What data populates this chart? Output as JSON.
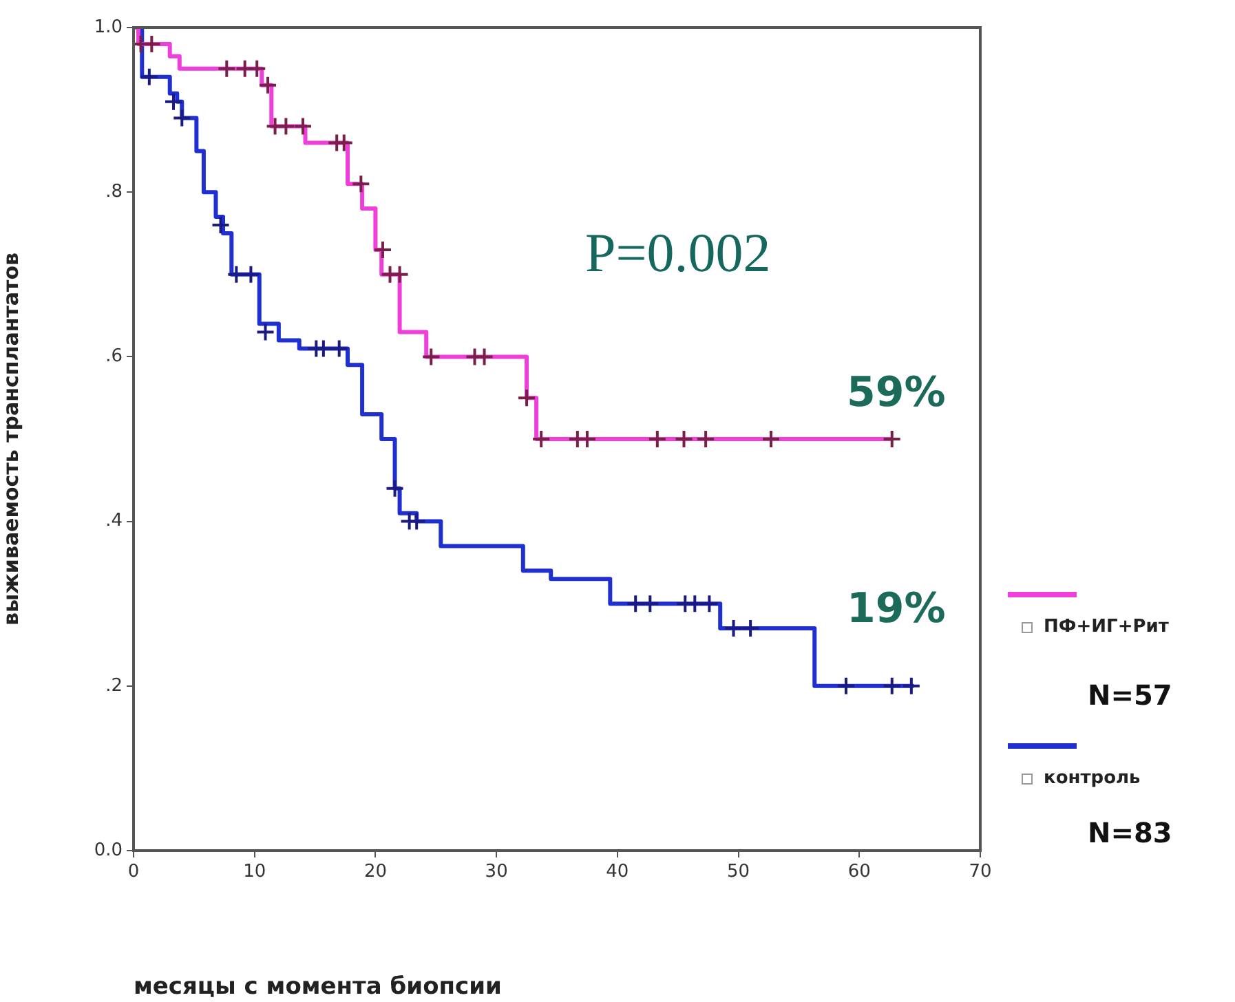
{
  "chart_data": {
    "type": "step",
    "xlabel": "месяцы с момента биопсии",
    "ylabel": "выживаемость трансплантатов",
    "xlim": [
      0,
      70
    ],
    "xticks": [
      0,
      10,
      20,
      30,
      40,
      50,
      60,
      70
    ],
    "ylim": [
      0,
      1
    ],
    "yticks": [
      {
        "value": 0,
        "label": "0.0"
      },
      {
        "value": 0.2,
        "label": ".2"
      },
      {
        "value": 0.4,
        "label": ".4"
      },
      {
        "value": 0.6,
        "label": ".6"
      },
      {
        "value": 0.8,
        "label": ".8"
      },
      {
        "value": 1,
        "label": "1.0"
      }
    ],
    "grid": false,
    "legend": "right",
    "series": [
      {
        "name": "ПФ+ИГ+Рит",
        "marker": "none",
        "color": "#ee3fd8",
        "x": [
          0,
          0.4,
          3,
          3.8,
          10.6,
          11.4,
          14.2,
          17.7,
          18.9,
          20,
          20.5,
          22,
          24.2,
          32.5,
          33.3,
          62.7
        ],
        "values": [
          1,
          0.98,
          0.965,
          0.95,
          0.93,
          0.88,
          0.86,
          0.81,
          0.78,
          0.73,
          0.7,
          0.63,
          0.6,
          0.55,
          0.5,
          0.5
        ]
      },
      {
        "type": "scatter",
        "marker": "cross",
        "color": "#7a1f4a",
        "x": [
          0.6,
          1.5,
          7.7,
          9.2,
          10.2,
          11.1,
          11.7,
          12.6,
          14,
          16.8,
          17.4,
          18.8,
          20.6,
          21.2,
          22,
          24.6,
          28.2,
          29,
          32.5,
          33.7,
          36.7,
          37.5,
          43.3,
          45.5,
          47.3,
          52.7,
          62.7
        ],
        "values": [
          0.98,
          0.98,
          0.95,
          0.95,
          0.95,
          0.93,
          0.88,
          0.88,
          0.88,
          0.86,
          0.86,
          0.81,
          0.73,
          0.7,
          0.7,
          0.6,
          0.6,
          0.6,
          0.55,
          0.5,
          0.5,
          0.5,
          0.5,
          0.5,
          0.5,
          0.5,
          0.5
        ]
      },
      {
        "name": "контроль",
        "marker": "none",
        "color": "#1f2fd0",
        "x": [
          0,
          0.7,
          3,
          3.6,
          4,
          5.2,
          5.8,
          6.8,
          7.4,
          8.1,
          10.4,
          12,
          13.7,
          17.7,
          18.9,
          20.5,
          21.6,
          22,
          23.4,
          25.4,
          32.2,
          34.5,
          39.4,
          48.5,
          56.3,
          64.5
        ],
        "values": [
          1,
          0.94,
          0.92,
          0.91,
          0.89,
          0.85,
          0.8,
          0.77,
          0.75,
          0.7,
          0.64,
          0.62,
          0.61,
          0.59,
          0.53,
          0.5,
          0.44,
          0.41,
          0.4,
          0.37,
          0.34,
          0.33,
          0.3,
          0.27,
          0.2,
          0.2
        ]
      },
      {
        "type": "scatter",
        "marker": "cross",
        "color": "#1a1a80",
        "x": [
          1.3,
          3.3,
          4,
          7.2,
          8.5,
          9.7,
          10.9,
          15.1,
          15.7,
          17,
          21.6,
          22.8,
          23.4,
          41.5,
          42.7,
          45.6,
          46.4,
          47.6,
          49.6,
          51,
          58.9,
          62.7,
          64.3
        ],
        "values": [
          0.94,
          0.91,
          0.89,
          0.76,
          0.7,
          0.7,
          0.63,
          0.61,
          0.61,
          0.61,
          0.44,
          0.4,
          0.4,
          0.3,
          0.3,
          0.3,
          0.3,
          0.3,
          0.27,
          0.27,
          0.2,
          0.2,
          0.2
        ]
      }
    ],
    "annotations": [
      "P=0.002",
      "59%",
      "19%",
      "N=57",
      "N=83"
    ]
  }
}
